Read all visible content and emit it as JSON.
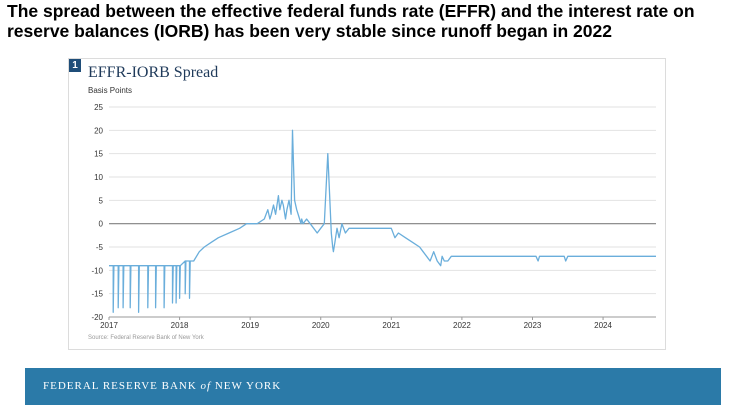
{
  "headline": "The spread between the effective federal funds rate (EFFR) and the interest rate on reserve balances (IORB) has been very stable since runoff began in 2022",
  "chart_number": "1",
  "footer": {
    "org_name": "FEDERAL RESERVE BANK",
    "org_of": "of",
    "org_city": "NEW YORK"
  },
  "colors": {
    "line": "#6aaedb",
    "zero_line": "#808080",
    "grid": "#e2e2e2",
    "footer_bg": "#2b7aa8",
    "title": "#1f3a5a"
  },
  "chart_data": {
    "type": "line",
    "title": "EFFR-IORB Spread",
    "ylabel": "Basis Points",
    "xlabel": "",
    "source": "Source: Federal Reserve Bank of New York",
    "ylim": [
      -20,
      25
    ],
    "yticks": [
      25,
      20,
      15,
      10,
      5,
      0,
      -5,
      -10,
      -15,
      -20
    ],
    "xlim": [
      2017.0,
      2024.75
    ],
    "xticks": [
      "2017",
      "2018",
      "2019",
      "2020",
      "2021",
      "2022",
      "2023",
      "2024"
    ],
    "grid": true,
    "series": [
      {
        "name": "",
        "x": [
          2017.0,
          2017.06,
          2017.06,
          2017.07,
          2017.13,
          2017.13,
          2017.14,
          2017.2,
          2017.2,
          2017.21,
          2017.3,
          2017.3,
          2017.31,
          2017.42,
          2017.42,
          2017.43,
          2017.55,
          2017.55,
          2017.56,
          2017.66,
          2017.66,
          2017.67,
          2017.78,
          2017.78,
          2017.79,
          2017.9,
          2017.9,
          2017.91,
          2017.95,
          2017.95,
          2017.96,
          2018.0,
          2018.0,
          2018.01,
          2018.08,
          2018.08,
          2018.09,
          2018.14,
          2018.14,
          2018.15,
          2018.2,
          2018.28,
          2018.35,
          2018.45,
          2018.55,
          2018.7,
          2018.85,
          2018.95,
          2019.0,
          2019.1,
          2019.2,
          2019.25,
          2019.28,
          2019.3,
          2019.33,
          2019.36,
          2019.4,
          2019.42,
          2019.45,
          2019.47,
          2019.5,
          2019.52,
          2019.55,
          2019.58,
          2019.6,
          2019.63,
          2019.66,
          2019.7,
          2019.72,
          2019.73,
          2019.75,
          2019.8,
          2019.85,
          2019.9,
          2019.95,
          2020.0,
          2020.05,
          2020.1,
          2020.15,
          2020.17,
          2020.18,
          2020.2,
          2020.23,
          2020.26,
          2020.3,
          2020.35,
          2020.4,
          2020.5,
          2020.7,
          2020.9,
          2021.0,
          2021.05,
          2021.1,
          2021.2,
          2021.3,
          2021.4,
          2021.45,
          2021.5,
          2021.55,
          2021.6,
          2021.65,
          2021.7,
          2021.72,
          2021.75,
          2021.8,
          2021.85,
          2021.9,
          2022.0,
          2022.3,
          2022.6,
          2022.9,
          2023.05,
          2023.08,
          2023.1,
          2023.45,
          2023.47,
          2023.5,
          2024.75
        ],
        "values": [
          -9,
          -9,
          -19,
          -9,
          -9,
          -18,
          -9,
          -9,
          -18,
          -9,
          -9,
          -18,
          -9,
          -9,
          -19,
          -9,
          -9,
          -18,
          -9,
          -9,
          -18,
          -9,
          -9,
          -18,
          -9,
          -9,
          -17,
          -9,
          -9,
          -17,
          -9,
          -9,
          -16,
          -9,
          -8,
          -15,
          -8,
          -8,
          -16,
          -8,
          -8,
          -6,
          -5,
          -4,
          -3,
          -2,
          -1,
          0,
          0,
          0,
          1,
          3,
          1,
          2,
          4,
          2,
          6,
          3,
          5,
          4,
          1,
          3,
          5,
          2,
          20,
          5,
          3,
          1,
          0,
          1,
          0,
          1,
          0,
          -1,
          -2,
          -1,
          0,
          15,
          -2,
          -5,
          -6,
          -4,
          -1,
          -3,
          0,
          -2,
          -1,
          -1,
          -1,
          -1,
          -1,
          -3,
          -2,
          -3,
          -4,
          -5,
          -6,
          -7,
          -8,
          -6,
          -8,
          -9,
          -7,
          -8,
          -8,
          -7,
          -7,
          -7,
          -7,
          -7,
          -7,
          -7,
          -8,
          -7,
          -7,
          -8,
          -7,
          -7
        ]
      }
    ]
  }
}
